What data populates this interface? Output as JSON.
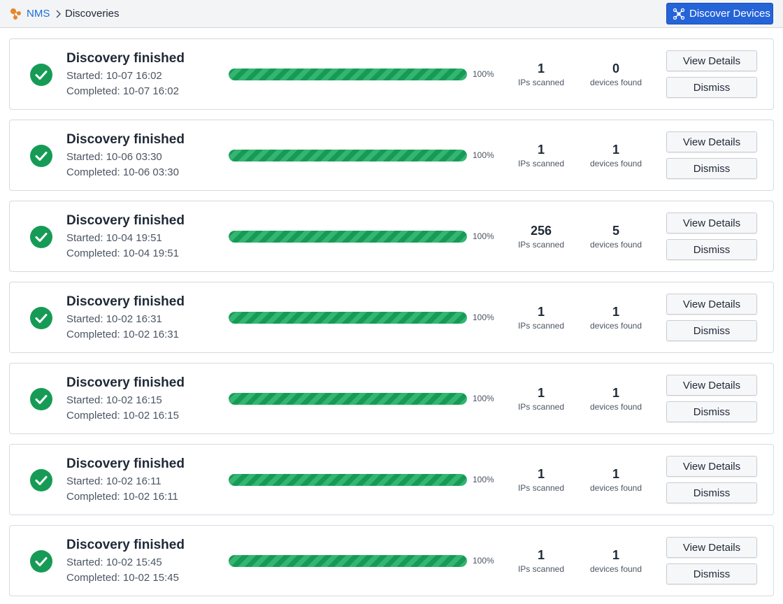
{
  "colors": {
    "accent": "#1d6fd6",
    "primary_button": "#2563d8",
    "success": "#169b56",
    "success_light": "#35b472"
  },
  "header": {
    "logo_icon": "nms-logo-icon",
    "breadcrumb": {
      "root": "NMS",
      "separator_icon": "chevron-right-icon",
      "current": "Discoveries"
    },
    "discover_button": {
      "icon": "network-icon",
      "label": "Discover Devices"
    }
  },
  "discoveries": [
    {
      "title": "Discovery finished",
      "started": "Started: 10-07 16:02",
      "completed": "Completed: 10-07 16:02",
      "progress": 100,
      "progress_label": "100%",
      "ips_scanned": "1",
      "ips_label": "IPs scanned",
      "devices_found": "0",
      "devices_label": "devices found",
      "view_label": "View Details",
      "dismiss_label": "Dismiss",
      "status_icon": "check-circle-icon"
    },
    {
      "title": "Discovery finished",
      "started": "Started: 10-06 03:30",
      "completed": "Completed: 10-06 03:30",
      "progress": 100,
      "progress_label": "100%",
      "ips_scanned": "1",
      "ips_label": "IPs scanned",
      "devices_found": "1",
      "devices_label": "devices found",
      "view_label": "View Details",
      "dismiss_label": "Dismiss",
      "status_icon": "check-circle-icon"
    },
    {
      "title": "Discovery finished",
      "started": "Started: 10-04 19:51",
      "completed": "Completed: 10-04 19:51",
      "progress": 100,
      "progress_label": "100%",
      "ips_scanned": "256",
      "ips_label": "IPs scanned",
      "devices_found": "5",
      "devices_label": "devices found",
      "view_label": "View Details",
      "dismiss_label": "Dismiss",
      "status_icon": "check-circle-icon"
    },
    {
      "title": "Discovery finished",
      "started": "Started: 10-02 16:31",
      "completed": "Completed: 10-02 16:31",
      "progress": 100,
      "progress_label": "100%",
      "ips_scanned": "1",
      "ips_label": "IPs scanned",
      "devices_found": "1",
      "devices_label": "devices found",
      "view_label": "View Details",
      "dismiss_label": "Dismiss",
      "status_icon": "check-circle-icon"
    },
    {
      "title": "Discovery finished",
      "started": "Started: 10-02 16:15",
      "completed": "Completed: 10-02 16:15",
      "progress": 100,
      "progress_label": "100%",
      "ips_scanned": "1",
      "ips_label": "IPs scanned",
      "devices_found": "1",
      "devices_label": "devices found",
      "view_label": "View Details",
      "dismiss_label": "Dismiss",
      "status_icon": "check-circle-icon"
    },
    {
      "title": "Discovery finished",
      "started": "Started: 10-02 16:11",
      "completed": "Completed: 10-02 16:11",
      "progress": 100,
      "progress_label": "100%",
      "ips_scanned": "1",
      "ips_label": "IPs scanned",
      "devices_found": "1",
      "devices_label": "devices found",
      "view_label": "View Details",
      "dismiss_label": "Dismiss",
      "status_icon": "check-circle-icon"
    },
    {
      "title": "Discovery finished",
      "started": "Started: 10-02 15:45",
      "completed": "Completed: 10-02 15:45",
      "progress": 100,
      "progress_label": "100%",
      "ips_scanned": "1",
      "ips_label": "IPs scanned",
      "devices_found": "1",
      "devices_label": "devices found",
      "view_label": "View Details",
      "dismiss_label": "Dismiss",
      "status_icon": "check-circle-icon"
    }
  ]
}
